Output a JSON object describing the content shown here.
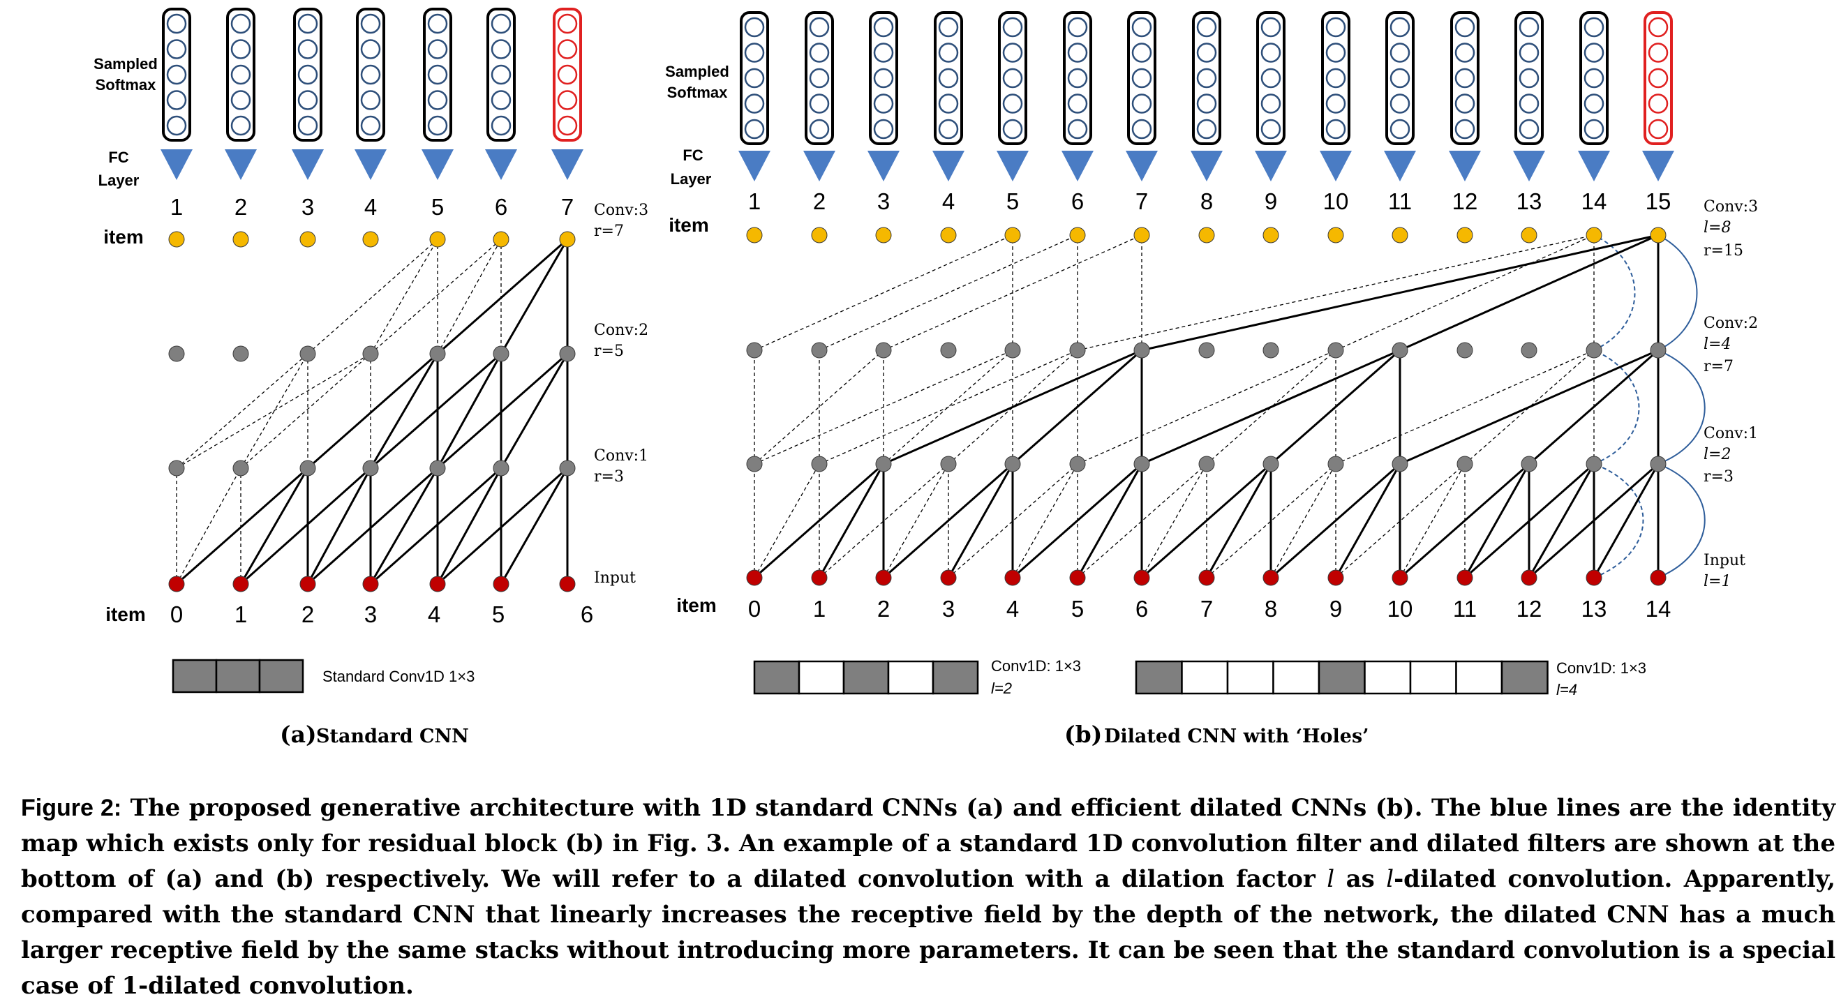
{
  "panel_a": {
    "sampled_softmax_label": [
      "Sampled",
      "Softmax"
    ],
    "fc_label": [
      "FC",
      "Layer"
    ],
    "output_numbers": [
      "1",
      "2",
      "3",
      "4",
      "5",
      "6",
      "7"
    ],
    "item_top_label": "item",
    "item_bottom_label": "item",
    "input_numbers": [
      "0",
      "1",
      "2",
      "3",
      "4",
      "5",
      "6"
    ],
    "layer_labels": [
      [
        "Conv:3",
        "r=7"
      ],
      [
        "Conv:2",
        "r=5"
      ],
      [
        "Conv:1",
        "r=3"
      ],
      [
        "Input"
      ]
    ],
    "filter_label": "Standard Conv1D  1×3",
    "sub_caption_letter": "(a)",
    "sub_caption_text": "Standard CNN"
  },
  "panel_b": {
    "sampled_softmax_label": [
      "Sampled",
      "Softmax"
    ],
    "fc_label": [
      "FC",
      "Layer"
    ],
    "output_numbers": [
      "1",
      "2",
      "3",
      "4",
      "5",
      "6",
      "7",
      "8",
      "9",
      "10",
      "11",
      "12",
      "13",
      "14",
      "15"
    ],
    "item_top_label": "item",
    "item_bottom_label": "item",
    "input_numbers": [
      "0",
      "1",
      "2",
      "3",
      "4",
      "5",
      "6",
      "7",
      "8",
      "9",
      "10",
      "11",
      "12",
      "13",
      "14"
    ],
    "layer_labels": [
      [
        "Conv:3",
        "l=8",
        "r=15"
      ],
      [
        "Conv:2",
        "l=4",
        "r=7"
      ],
      [
        "Conv:1",
        "l=2",
        "r=3"
      ],
      [
        "Input",
        "l=1"
      ]
    ],
    "filter1_label": [
      "Conv1D: 1×3",
      "l=2"
    ],
    "filter2_label": [
      "Conv1D: 1×3",
      "l=4"
    ],
    "sub_caption_letter": "(b)",
    "sub_caption_text": "Dilated CNN with ‘Holes’"
  },
  "caption": {
    "label": "Figure 2:",
    "text_1": " The proposed generative architecture with 1D standard CNNs (a) and efficient dilated CNNs (b). The blue lines are the identity map which exists only for residual block (b) in Fig. 3. An example of a standard 1D convolution filter and dilated filters are shown at the bottom of (a) and (b) respectively. We will refer to a dilated convolution with a dilation factor ",
    "italic_l_1": "l",
    "text_2": " as ",
    "italic_l_2": "l",
    "text_3": "-dilated convolution. Apparently, compared with the standard CNN that linearly increases the receptive field by the depth of the network, the dilated CNN has a much larger receptive field by the same stacks without introducing more parameters. It can be seen that the standard convolution is a special case of 1-dilated convolution."
  },
  "colors": {
    "softmax_border": "#000000",
    "softmax_circle": "#2e4f7a",
    "target_red": "#e02020",
    "fc_triangle": "#4a7cc4",
    "item_yellow": "#f5b800",
    "hidden_gray": "#7f7f7f",
    "input_red": "#c00000",
    "identity_blue": "#2e5d9a",
    "filter_gray": "#7f7f7f"
  }
}
